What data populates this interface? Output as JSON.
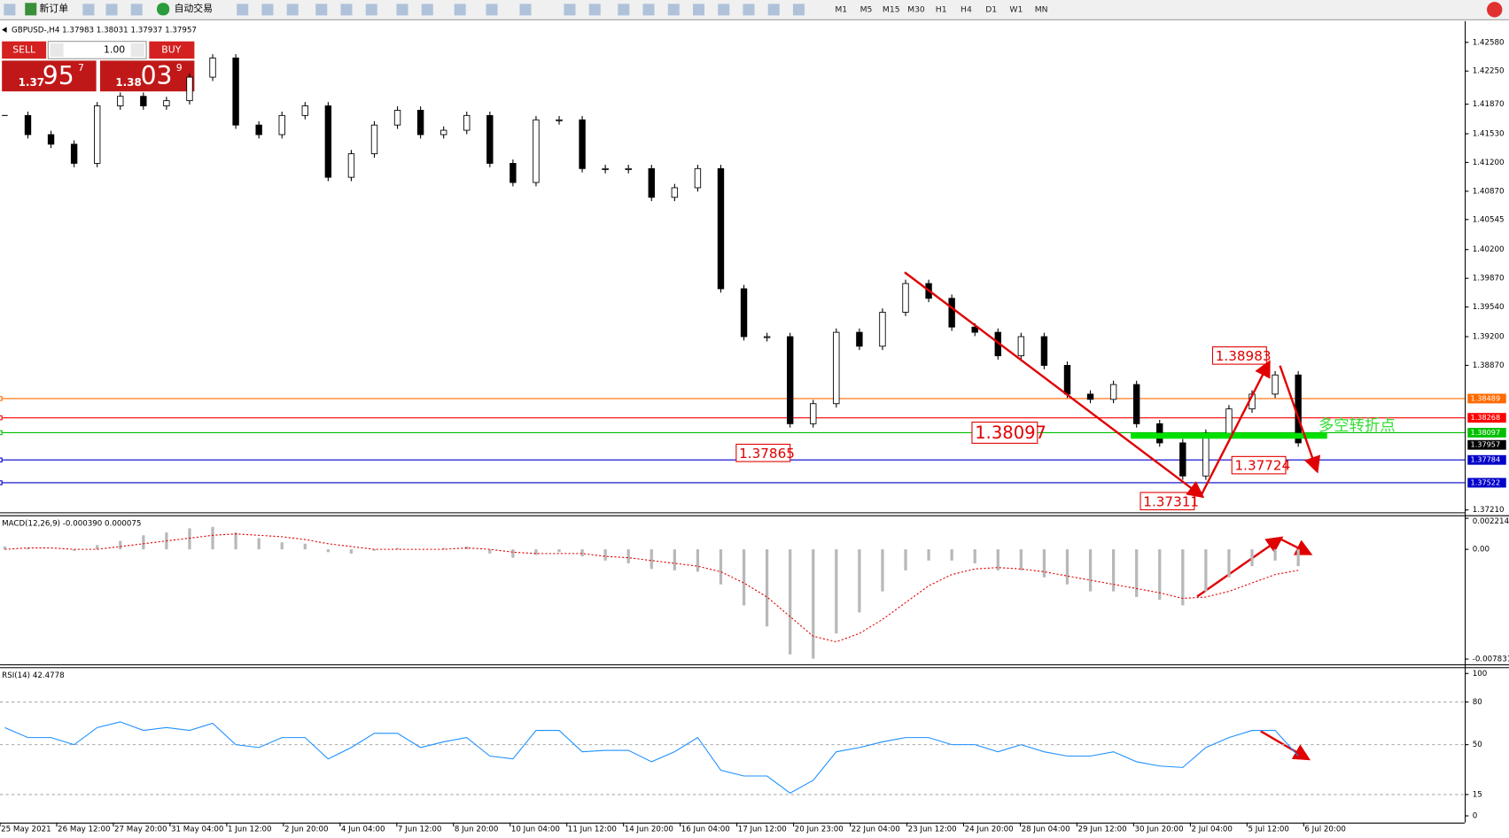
{
  "toolbar": {
    "new_order": "新订单",
    "auto_trading": "自动交易",
    "timeframes": [
      "M1",
      "M5",
      "M15",
      "M30",
      "H1",
      "H4",
      "D1",
      "W1",
      "MN"
    ]
  },
  "header": {
    "symbol": "GBPUSD-,H4",
    "ohlc": [
      1.37983,
      1.38031,
      1.37937,
      1.37957
    ]
  },
  "trade_panel": {
    "sell": "SELL",
    "buy": "BUY",
    "lot": "1.00",
    "sell_price": [
      "1.37",
      "95",
      "7"
    ],
    "buy_price": [
      "1.38",
      "03",
      "9"
    ]
  },
  "price_chart": {
    "type": "candlestick",
    "closes": [
      1.4174,
      1.4152,
      1.4141,
      1.4119,
      1.4185,
      1.4196,
      1.4185,
      1.4191,
      1.4218,
      1.424,
      1.4163,
      1.4152,
      1.4174,
      1.4185,
      1.4103,
      1.413,
      1.4163,
      1.418,
      1.4152,
      1.4157,
      1.4174,
      1.4119,
      1.4097,
      1.4169,
      1.4169,
      1.4113,
      1.4113,
      1.4113,
      1.408,
      1.4091,
      1.4113,
      1.3975,
      1.392,
      1.392,
      1.382,
      1.3843,
      1.3925,
      1.3909,
      1.3948,
      1.3981,
      1.3964,
      1.3931,
      1.3925,
      1.3898,
      1.392,
      1.3887,
      1.3854,
      1.3848,
      1.3865,
      1.382,
      1.3798,
      1.376,
      1.3809,
      1.3837,
      1.3854,
      1.3876,
      1.3798
    ],
    "ylim": [
      1.37188,
      1.42823
    ],
    "yticks": [
      {
        "value": 1.4258,
        "label": "1.42580"
      },
      {
        "value": 1.4225,
        "label": "1.42250"
      },
      {
        "value": 1.4187,
        "label": "1.41870"
      },
      {
        "value": 1.4153,
        "label": "1.41530"
      },
      {
        "value": 1.412,
        "label": "1.41200"
      },
      {
        "value": 1.4087,
        "label": "1.40870"
      },
      1.40545,
      {
        "value": 1.402,
        "label": "1.40200"
      },
      {
        "value": 1.3987,
        "label": "1.39870"
      },
      {
        "value": 1.3954,
        "label": "1.39540"
      },
      {
        "value": 1.392,
        "label": "1.39200"
      },
      {
        "value": 1.3887,
        "label": "1.38870"
      },
      {
        "value": 1.3721,
        "label": "1.37210"
      }
    ],
    "levels": [
      {
        "value": 1.38489,
        "color": "#ff6a00"
      },
      {
        "value": 1.38268,
        "color": "#ff0000"
      },
      {
        "value": 1.38097,
        "color": "#00c000"
      },
      {
        "value": 1.37957,
        "color": "#000000"
      },
      {
        "value": 1.37784,
        "color": "#0000c8"
      },
      {
        "value": 1.37522,
        "color": "#0000c8"
      }
    ],
    "price_labels": [
      1.38983,
      1.38097,
      1.37865,
      1.37724,
      1.37311
    ],
    "turning_point": "多空转折点"
  },
  "macd": {
    "label": "MACD(12,26,9) -0.000390 0.000075",
    "histogram": [
      0.0002,
      0.0001,
      0.0,
      -0.0001,
      0.0003,
      0.0006,
      0.001,
      0.0012,
      0.0015,
      0.0016,
      0.0012,
      0.0008,
      0.0005,
      0.0004,
      -0.0002,
      -0.0003,
      -0.0001,
      0.0001,
      0.0,
      0.0001,
      0.0002,
      -0.0003,
      -0.0006,
      -0.0004,
      -0.0002,
      -0.0005,
      -0.0008,
      -0.001,
      -0.0014,
      -0.0015,
      -0.0016,
      -0.0025,
      -0.004,
      -0.0055,
      -0.0075,
      -0.0078,
      -0.006,
      -0.0045,
      -0.003,
      -0.0015,
      -0.0008,
      -0.0008,
      -0.001,
      -0.0015,
      -0.0015,
      -0.002,
      -0.0025,
      -0.003,
      -0.003,
      -0.0034,
      -0.0036,
      -0.004,
      -0.003,
      -0.002,
      -0.0012,
      -0.0008,
      -0.0012
    ],
    "signal": [
      0.0,
      0.0001,
      0.0001,
      0.0,
      0.0,
      0.0002,
      0.0004,
      0.0006,
      0.0008,
      0.001,
      0.0011,
      0.001,
      0.0009,
      0.0007,
      0.0004,
      0.0002,
      0.0,
      0.0,
      0.0,
      0.0,
      0.0001,
      0.0,
      -0.0002,
      -0.0003,
      -0.0003,
      -0.0003,
      -0.0005,
      -0.0006,
      -0.0008,
      -0.001,
      -0.0012,
      -0.0016,
      -0.0024,
      -0.0034,
      -0.0048,
      -0.0062,
      -0.0066,
      -0.006,
      -0.005,
      -0.0038,
      -0.0026,
      -0.0018,
      -0.0014,
      -0.0013,
      -0.0014,
      -0.0016,
      -0.0019,
      -0.0022,
      -0.0025,
      -0.0028,
      -0.0031,
      -0.0035,
      -0.0034,
      -0.003,
      -0.0024,
      -0.0018,
      -0.0015
    ],
    "ylim": [
      -0.00817,
      0.0024
    ],
    "yticks": [
      0.002214,
      {
        "value": 0,
        "label": "0.00"
      },
      -0.007831
    ]
  },
  "rsi": {
    "label": "RSI(14) 42.4778",
    "values": [
      62,
      55,
      55,
      50,
      62,
      66,
      60,
      62,
      60,
      65,
      50,
      48,
      55,
      55,
      40,
      48,
      58,
      58,
      48,
      52,
      55,
      42,
      40,
      60,
      60,
      45,
      46,
      46,
      38,
      45,
      55,
      32,
      28,
      28,
      16,
      25,
      45,
      48,
      52,
      55,
      55,
      50,
      50,
      45,
      50,
      45,
      42,
      42,
      45,
      38,
      35,
      34,
      48,
      55,
      60,
      60,
      42
    ],
    "ylim": [
      0,
      100
    ],
    "yticks": [
      100,
      80,
      50,
      15,
      0
    ],
    "levels": [
      80,
      50,
      15
    ]
  },
  "time_axis": [
    "25 May 2021",
    "26 May 12:00",
    "27 May 20:00",
    "31 May 04:00",
    "1 Jun 12:00",
    "2 Jun 20:00",
    "4 Jun 04:00",
    "7 Jun 12:00",
    "8 Jun 20:00",
    "10 Jun 04:00",
    "11 Jun 12:00",
    "14 Jun 20:00",
    "16 Jun 04:00",
    "17 Jun 12:00",
    "20 Jun 23:00",
    "22 Jun 04:00",
    "23 Jun 12:00",
    "24 Jun 20:00",
    "28 Jun 04:00",
    "29 Jun 12:00",
    "30 Jun 20:00",
    "2 Jul 04:00",
    "5 Jul 12:00",
    "6 Jul 20:00"
  ]
}
